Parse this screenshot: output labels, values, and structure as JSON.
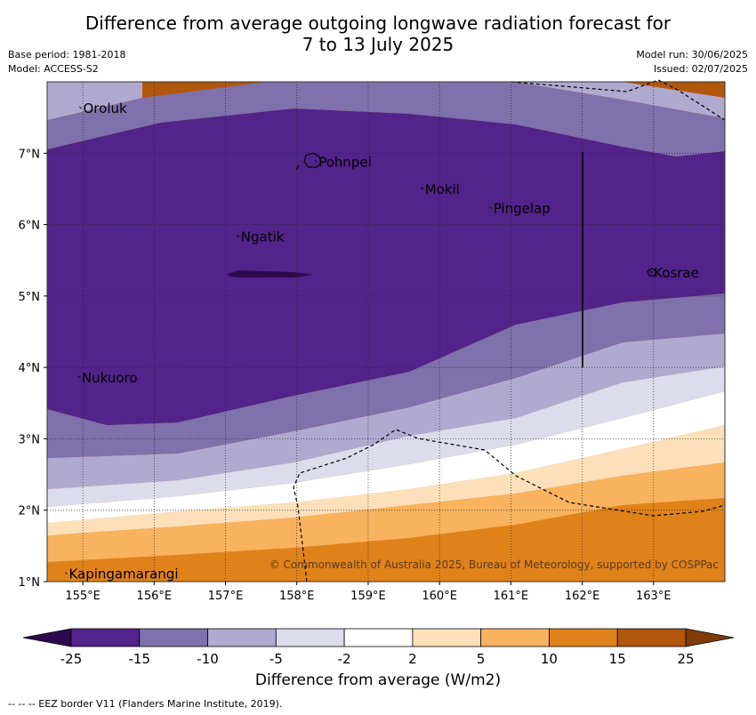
{
  "title_line1": "Difference from average outgoing longwave radiation forecast for",
  "title_line2": "7 to 13 July 2025",
  "base_period": "Base period: 1981-2018",
  "model": "Model: ACCESS-S2",
  "model_run": "Model run: 30/06/2025",
  "issued": "Issued: 02/07/2025",
  "copyright": "© Commonwealth of Australia 2025, Bureau of Meteorology, supported by COSPPac",
  "colorbar_title": "Difference from average (W/m2)",
  "footer": "--  --  -- EEZ border V11 (Flanders Marine Institute, 2019).",
  "map": {
    "lon_min": 154.5,
    "lon_max": 164.0,
    "lat_min": 1.0,
    "lat_max": 8.0,
    "lon_ticks": [
      155,
      156,
      157,
      158,
      159,
      160,
      161,
      162,
      163
    ],
    "lon_tick_labels": [
      "155°E",
      "156°E",
      "157°E",
      "158°E",
      "159°E",
      "160°E",
      "161°E",
      "162°E",
      "163°E"
    ],
    "lat_ticks": [
      1,
      2,
      3,
      4,
      5,
      6,
      7
    ],
    "lat_tick_labels": [
      "1°N",
      "2°N",
      "3°N",
      "4°N",
      "5°N",
      "6°N",
      "7°N"
    ],
    "grid": true,
    "places": [
      {
        "name": "Oroluk",
        "lon": 154.98,
        "lat": 7.6
      },
      {
        "name": "Pohnpei",
        "lon": 158.28,
        "lat": 6.85
      },
      {
        "name": "Mokil",
        "lon": 159.77,
        "lat": 6.47
      },
      {
        "name": "Pingelap",
        "lon": 160.73,
        "lat": 6.2
      },
      {
        "name": "Ngatik",
        "lon": 157.19,
        "lat": 5.8
      },
      {
        "name": "Kosrae",
        "lon": 162.98,
        "lat": 5.3
      },
      {
        "name": "Nukuoro",
        "lon": 154.96,
        "lat": 3.83
      },
      {
        "name": "Kapingamarangi",
        "lon": 154.78,
        "lat": 1.08
      }
    ]
  },
  "colorbar": {
    "labels": [
      "-25",
      "-15",
      "-10",
      "-5",
      "-2",
      "2",
      "5",
      "10",
      "15",
      "25"
    ],
    "colors": [
      "#2d0a4e",
      "#52238a",
      "#7f71ab",
      "#b0aad1",
      "#dcdcec",
      "#ffffff",
      "#fde0b9",
      "#f9b25d",
      "#e0821a",
      "#b2580c",
      "#7f3b08"
    ]
  }
}
